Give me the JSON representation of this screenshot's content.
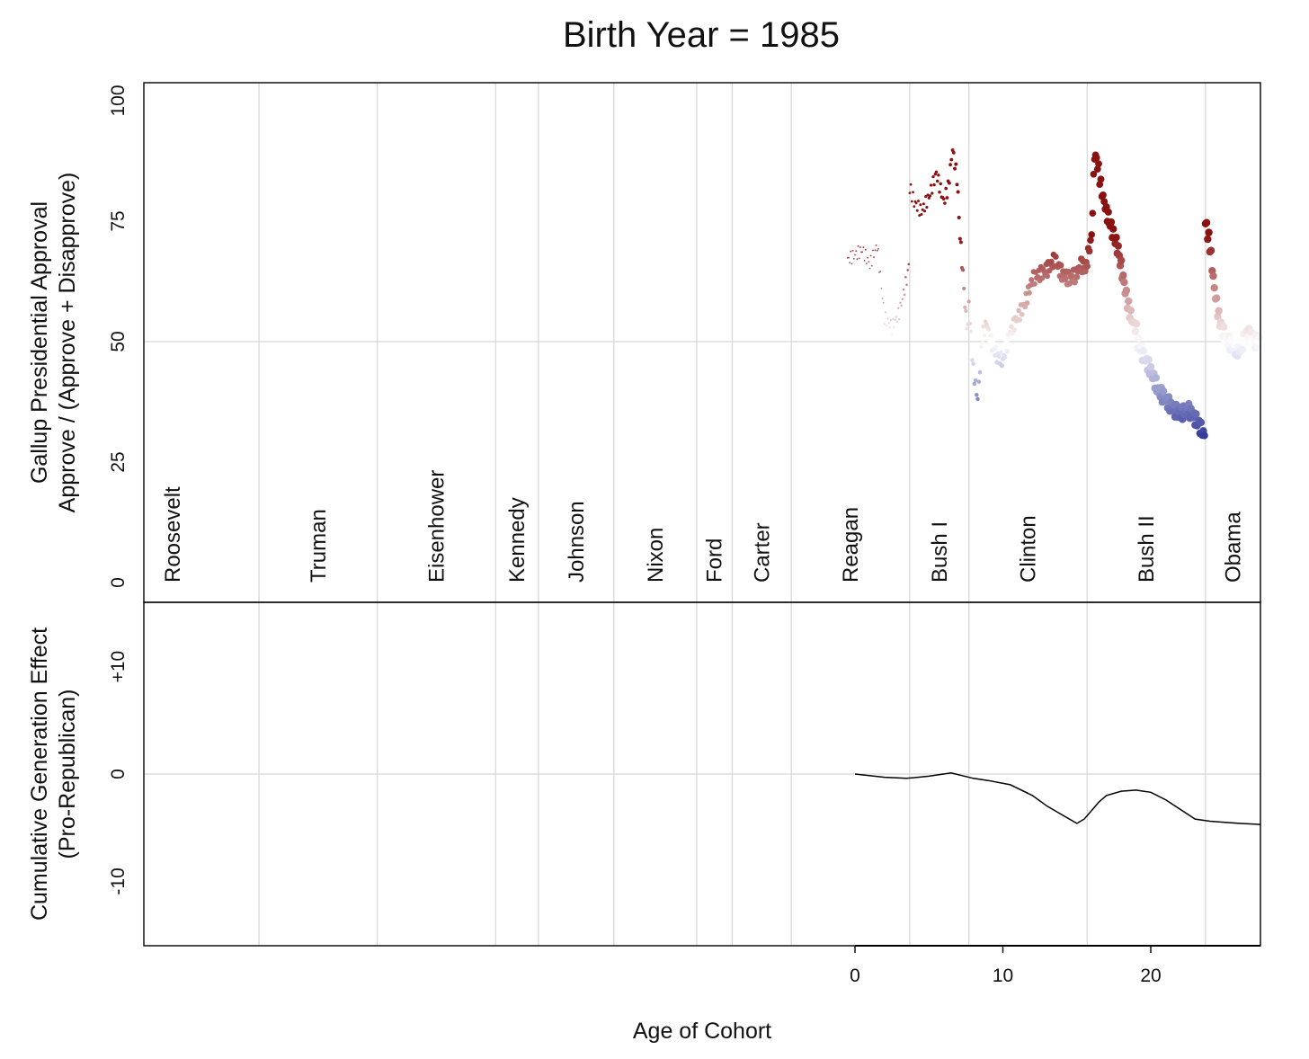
{
  "chart_data": [
    {
      "type": "scatter",
      "title": "Birth Year = 1985",
      "ylabel_lines": [
        "Gallup Presidential Approval",
        "Approve / (Approve + Disapprove)"
      ],
      "ylim": [
        0,
        100
      ],
      "y_ticks": [
        "0",
        "25",
        "50",
        "75",
        "100"
      ],
      "grid": true,
      "color_scale": {
        "republican": "#8b1010",
        "neutral": "#ffffff",
        "democrat": "#1c2590"
      },
      "presidents": [
        {
          "name": "Roosevelt",
          "party": "D",
          "start_age": -52.0,
          "end_age": -40.3
        },
        {
          "name": "Truman",
          "party": "D",
          "start_age": -40.3,
          "end_age": -32.3
        },
        {
          "name": "Eisenhower",
          "party": "R",
          "start_age": -32.3,
          "end_age": -24.3
        },
        {
          "name": "Kennedy",
          "party": "D",
          "start_age": -24.3,
          "end_age": -21.4
        },
        {
          "name": "Johnson",
          "party": "D",
          "start_age": -21.4,
          "end_age": -16.3
        },
        {
          "name": "Nixon",
          "party": "R",
          "start_age": -16.3,
          "end_age": -10.7
        },
        {
          "name": "Ford",
          "party": "R",
          "start_age": -10.7,
          "end_age": -8.3
        },
        {
          "name": "Carter",
          "party": "D",
          "start_age": -8.3,
          "end_age": -4.3
        },
        {
          "name": "Reagan",
          "party": "R",
          "start_age": -4.3,
          "end_age": 3.7
        },
        {
          "name": "Bush I",
          "party": "R",
          "start_age": 3.7,
          "end_age": 7.7
        },
        {
          "name": "Clinton",
          "party": "D",
          "start_age": 7.7,
          "end_age": 15.7
        },
        {
          "name": "Bush II",
          "party": "R",
          "start_age": 15.7,
          "end_age": 23.7
        },
        {
          "name": "Obama",
          "party": "D",
          "start_age": 23.7,
          "end_age": 27.4
        }
      ],
      "series": [
        {
          "party": "R",
          "points": [
            [
              -0.5,
              67
            ],
            [
              0.5,
              69
            ],
            [
              1.0,
              66
            ],
            [
              1.5,
              70
            ],
            [
              2.0,
              55
            ],
            [
              2.5,
              53
            ],
            [
              3.0,
              56
            ],
            [
              3.5,
              63
            ],
            [
              3.7,
              67
            ]
          ]
        },
        {
          "party": "R",
          "points": [
            [
              3.7,
              82
            ],
            [
              4.0,
              79
            ],
            [
              4.5,
              77
            ],
            [
              5.0,
              80
            ],
            [
              5.5,
              85
            ],
            [
              6.0,
              79
            ],
            [
              6.3,
              82
            ],
            [
              6.6,
              90
            ],
            [
              6.9,
              84
            ],
            [
              7.1,
              72
            ],
            [
              7.3,
              64
            ],
            [
              7.5,
              55
            ],
            [
              7.7,
              52
            ]
          ]
        },
        {
          "party": "D",
          "points": [
            [
              7.7,
              58
            ],
            [
              8.0,
              44
            ],
            [
              8.3,
              38
            ],
            [
              8.6,
              51
            ],
            [
              8.9,
              54
            ],
            [
              9.2,
              50
            ],
            [
              9.6,
              47
            ],
            [
              10.0,
              46
            ],
            [
              10.5,
              52
            ],
            [
              11.0,
              55
            ],
            [
              11.5,
              58
            ],
            [
              12.0,
              63
            ],
            [
              12.5,
              64
            ],
            [
              13.0,
              65
            ],
            [
              13.5,
              67
            ],
            [
              14.0,
              64
            ],
            [
              14.5,
              63
            ],
            [
              15.0,
              64
            ],
            [
              15.3,
              66
            ],
            [
              15.7,
              65
            ]
          ]
        },
        {
          "party": "R",
          "points": [
            [
              15.7,
              67
            ],
            [
              16.0,
              72
            ],
            [
              16.2,
              89
            ],
            [
              16.4,
              87
            ],
            [
              16.7,
              81
            ],
            [
              17.0,
              77
            ],
            [
              17.4,
              73
            ],
            [
              17.8,
              69
            ],
            [
              18.2,
              62
            ],
            [
              18.5,
              57
            ],
            [
              18.8,
              54
            ],
            [
              19.1,
              52
            ]
          ]
        },
        {
          "party": "D",
          "points": [
            [
              19.1,
              50
            ],
            [
              19.5,
              47
            ],
            [
              20.0,
              44
            ],
            [
              20.5,
              40
            ],
            [
              21.0,
              38
            ],
            [
              21.5,
              36
            ],
            [
              22.0,
              35
            ],
            [
              22.5,
              36
            ],
            [
              23.0,
              34
            ],
            [
              23.4,
              32
            ],
            [
              23.7,
              30
            ]
          ]
        },
        {
          "party": "D",
          "points": [
            [
              23.7,
              75
            ],
            [
              24.0,
              70
            ],
            [
              24.3,
              61
            ],
            [
              24.6,
              55
            ],
            [
              25.0,
              51
            ],
            [
              25.5,
              49
            ],
            [
              26.0,
              48
            ],
            [
              26.5,
              52
            ],
            [
              27.0,
              50
            ],
            [
              27.4,
              50
            ]
          ]
        }
      ]
    },
    {
      "type": "line",
      "ylabel_lines": [
        "Cumulative Generation Effect",
        "(Pro-Republican)"
      ],
      "xlabel": "Age of Cohort",
      "ylim": [
        -16,
        16
      ],
      "y_ticks": [
        {
          "value": 10,
          "label": "+10"
        },
        {
          "value": 0,
          "label": "0"
        },
        {
          "value": -10,
          "label": "-10"
        }
      ],
      "x_ticks": [
        {
          "value": 0,
          "label": "0"
        },
        {
          "value": 10,
          "label": "10"
        },
        {
          "value": 20,
          "label": "20"
        }
      ],
      "xlim": [
        -48.0,
        27.4
      ],
      "grid": true,
      "series": [
        {
          "x": [
            0,
            2,
            3.5,
            5,
            6.5,
            8,
            9,
            10.5,
            12,
            13,
            14,
            15,
            15.5,
            16,
            16.5,
            17,
            18,
            19,
            20,
            21,
            22,
            23,
            24,
            25,
            26,
            27.4
          ],
          "y": [
            0,
            -0.3,
            -0.4,
            -0.2,
            0.1,
            -0.4,
            -0.6,
            -1.0,
            -2.0,
            -3.0,
            -3.8,
            -4.6,
            -4.2,
            -3.4,
            -2.6,
            -2.0,
            -1.6,
            -1.5,
            -1.7,
            -2.4,
            -3.3,
            -4.2,
            -4.4,
            -4.5,
            -4.6,
            -4.7
          ]
        }
      ]
    }
  ]
}
